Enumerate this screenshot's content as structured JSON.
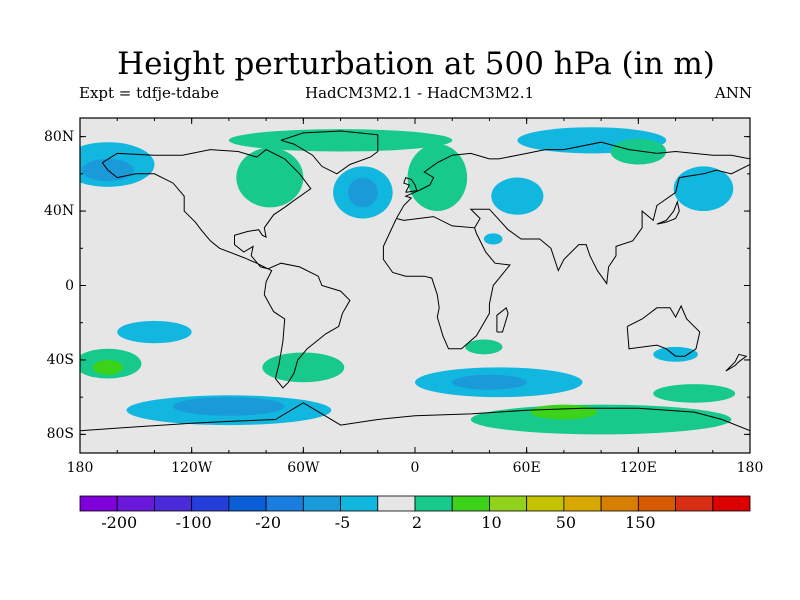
{
  "title": "Height perturbation at 500 hPa (in m)",
  "subtitle_left": "Expt = tdfje-tdabe",
  "subtitle_center": "HadCM3M2.1 - HadCM3M2.1",
  "subtitle_right": "ANN",
  "map": {
    "lon_range": [
      -180,
      180
    ],
    "lat_range": [
      -90,
      90
    ],
    "lat_ticks": [
      {
        "value": 80,
        "label": "80N"
      },
      {
        "value": 40,
        "label": "40N"
      },
      {
        "value": 0,
        "label": "0"
      },
      {
        "value": -40,
        "label": "40S"
      },
      {
        "value": -80,
        "label": "80S"
      }
    ],
    "lon_ticks": [
      {
        "value": -180,
        "label": "180"
      },
      {
        "value": -120,
        "label": "120W"
      },
      {
        "value": -60,
        "label": "60W"
      },
      {
        "value": 0,
        "label": "0"
      },
      {
        "value": 60,
        "label": "60E"
      },
      {
        "value": 120,
        "label": "120E"
      },
      {
        "value": 180,
        "label": "180"
      }
    ],
    "background_color": "#e6e6e6",
    "regions": [
      {
        "name": "north-pacific-low",
        "lon": -165,
        "lat": 65,
        "rx": 25,
        "ry": 12,
        "level": "neg1"
      },
      {
        "name": "north-pacific-low-core",
        "lon": -165,
        "lat": 62,
        "rx": 14,
        "ry": 6,
        "level": "neg2"
      },
      {
        "name": "north-america-high",
        "lon": -78,
        "lat": 58,
        "rx": 18,
        "ry": 16,
        "level": "pos1"
      },
      {
        "name": "north-atlantic-low",
        "lon": -28,
        "lat": 50,
        "rx": 16,
        "ry": 14,
        "level": "neg1"
      },
      {
        "name": "north-atlantic-low-core",
        "lon": -28,
        "lat": 50,
        "rx": 8,
        "ry": 8,
        "level": "neg2"
      },
      {
        "name": "europe-high",
        "lon": 12,
        "lat": 58,
        "rx": 16,
        "ry": 18,
        "level": "pos1"
      },
      {
        "name": "arctic-high",
        "lon": -40,
        "lat": 78,
        "rx": 60,
        "ry": 6,
        "level": "pos1"
      },
      {
        "name": "central-asia-low",
        "lon": 55,
        "lat": 48,
        "rx": 14,
        "ry": 10,
        "level": "neg1"
      },
      {
        "name": "siberia-low",
        "lon": 95,
        "lat": 78,
        "rx": 40,
        "ry": 7,
        "level": "neg1"
      },
      {
        "name": "east-asia-high",
        "lon": 120,
        "lat": 72,
        "rx": 15,
        "ry": 7,
        "level": "pos1"
      },
      {
        "name": "north-pacific-west-low",
        "lon": 155,
        "lat": 52,
        "rx": 16,
        "ry": 12,
        "level": "neg1"
      },
      {
        "name": "arabia-low",
        "lon": 42,
        "lat": 25,
        "rx": 5,
        "ry": 3,
        "level": "neg1"
      },
      {
        "name": "south-pacific-high",
        "lon": -165,
        "lat": -42,
        "rx": 18,
        "ry": 8,
        "level": "pos1"
      },
      {
        "name": "south-pacific-high-core",
        "lon": -165,
        "lat": -44,
        "rx": 8,
        "ry": 4,
        "level": "pos2"
      },
      {
        "name": "south-pacific-low",
        "lon": -140,
        "lat": -25,
        "rx": 20,
        "ry": 6,
        "level": "neg1"
      },
      {
        "name": "south-america-high",
        "lon": -60,
        "lat": -44,
        "rx": 22,
        "ry": 8,
        "level": "pos1"
      },
      {
        "name": "southern-ocean-low-west",
        "lon": -100,
        "lat": -67,
        "rx": 55,
        "ry": 8,
        "level": "neg1"
      },
      {
        "name": "southern-ocean-low-west-core",
        "lon": -100,
        "lat": -65,
        "rx": 30,
        "ry": 5,
        "level": "neg2"
      },
      {
        "name": "southern-ocean-low-east",
        "lon": 45,
        "lat": -52,
        "rx": 45,
        "ry": 8,
        "level": "neg1"
      },
      {
        "name": "southern-ocean-low-east-core",
        "lon": 40,
        "lat": -52,
        "rx": 20,
        "ry": 4,
        "level": "neg2"
      },
      {
        "name": "antarctic-high",
        "lon": 100,
        "lat": -72,
        "rx": 70,
        "ry": 8,
        "level": "pos1"
      },
      {
        "name": "antarctic-high-core",
        "lon": 80,
        "lat": -68,
        "rx": 18,
        "ry": 4,
        "level": "pos2"
      },
      {
        "name": "australia-south-low",
        "lon": 140,
        "lat": -37,
        "rx": 12,
        "ry": 4,
        "level": "neg1"
      },
      {
        "name": "new-zealand-high",
        "lon": 150,
        "lat": -58,
        "rx": 22,
        "ry": 5,
        "level": "pos1"
      },
      {
        "name": "south-atlantic-high",
        "lon": 37,
        "lat": -33,
        "rx": 10,
        "ry": 4,
        "level": "pos1"
      }
    ]
  },
  "colorbar": {
    "colors": [
      "#7f00d9",
      "#6a18d9",
      "#4a2ad9",
      "#243ed9",
      "#0a5ed8",
      "#1a7ee0",
      "#1a9ad8",
      "#11b7de",
      "#e6e6e6",
      "#17c98a",
      "#3cd21a",
      "#90d21c",
      "#c5c200",
      "#d8a700",
      "#d67f00",
      "#d65b00",
      "#d82e14",
      "#dc0000"
    ],
    "tick_labels": [
      "-200",
      "-100",
      "-20",
      "-5",
      "2",
      "10",
      "50",
      "150"
    ]
  },
  "level_colors": {
    "neg2": "#1a9ad8",
    "neg1": "#11b7de",
    "pos1": "#17c98a",
    "pos2": "#3cd21a"
  }
}
